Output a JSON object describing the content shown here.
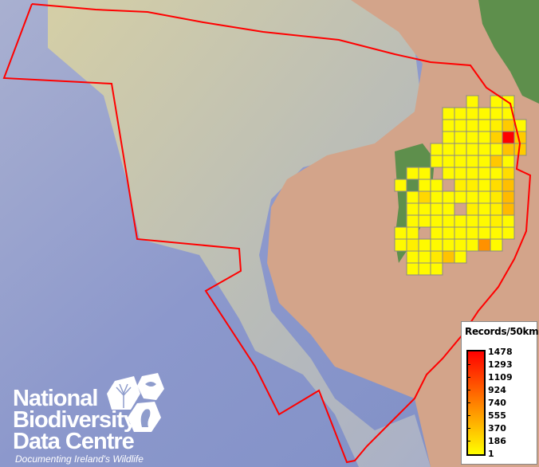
{
  "map": {
    "colors": {
      "ocean": "#8e9ccc",
      "shelf": "#c9c7a6",
      "land": "#d3a48a",
      "ireland": "#5e8f4c",
      "boundary": "#ff0000",
      "grid_border": "#888888"
    },
    "scale": {
      "min_color": "#ffff00",
      "max_color": "#ff0000",
      "min": 1,
      "max": 1478
    },
    "grid_rows": [
      [
        null,
        null,
        null,
        null,
        null,
        null,
        30,
        null,
        30,
        30,
        null
      ],
      [
        null,
        null,
        null,
        null,
        30,
        30,
        30,
        30,
        30,
        30,
        null
      ],
      [
        null,
        null,
        null,
        null,
        30,
        30,
        30,
        30,
        90,
        300,
        30
      ],
      [
        null,
        null,
        null,
        null,
        30,
        30,
        30,
        30,
        270,
        1478,
        300
      ],
      [
        null,
        null,
        null,
        30,
        30,
        30,
        30,
        30,
        30,
        350,
        300
      ],
      [
        null,
        null,
        null,
        30,
        30,
        30,
        30,
        30,
        320,
        30,
        null
      ],
      [
        null,
        30,
        30,
        null,
        30,
        30,
        30,
        30,
        30,
        200,
        null
      ],
      [
        30,
        null,
        30,
        30,
        null,
        90,
        90,
        30,
        200,
        370,
        null
      ],
      [
        null,
        30,
        230,
        30,
        30,
        30,
        30,
        30,
        120,
        400,
        null
      ],
      [
        null,
        30,
        30,
        30,
        30,
        null,
        90,
        30,
        90,
        400,
        null
      ],
      [
        null,
        30,
        30,
        30,
        30,
        30,
        30,
        30,
        90,
        30,
        null
      ],
      [
        30,
        30,
        null,
        30,
        30,
        30,
        30,
        30,
        30,
        30,
        null
      ],
      [
        30,
        90,
        30,
        30,
        30,
        30,
        30,
        640,
        30,
        null,
        null
      ],
      [
        null,
        30,
        30,
        130,
        350,
        30,
        null,
        null,
        null,
        null,
        null
      ],
      [
        null,
        30,
        30,
        30,
        null,
        null,
        null,
        null,
        null,
        null,
        null
      ]
    ]
  },
  "legend": {
    "title": "Records/50km",
    "labels": [
      "1478",
      "1293",
      "1109",
      "924",
      "740",
      "555",
      "370",
      "186",
      "1"
    ]
  },
  "logo": {
    "lines": [
      "National",
      "Biodiversity",
      "Data Centre"
    ],
    "tagline": "Documenting Ireland's Wildlife"
  }
}
